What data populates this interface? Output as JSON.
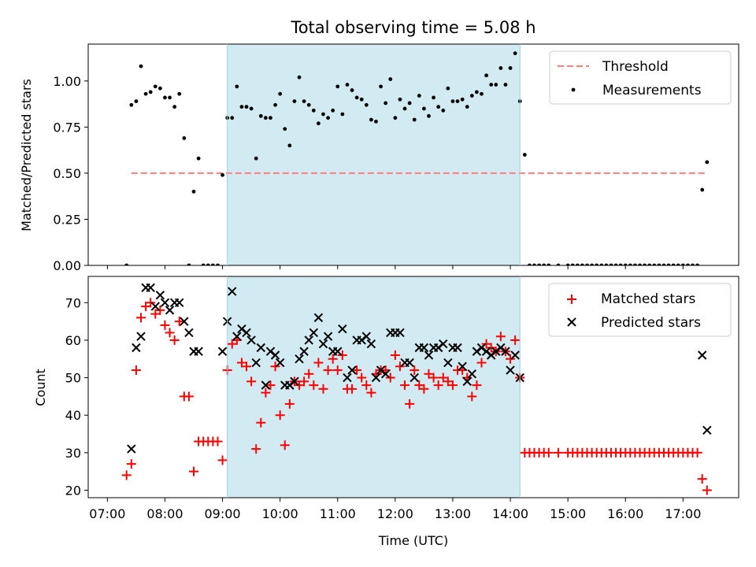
{
  "chart_data": [
    {
      "type": "scatter",
      "title": "Total observing time = 5.08 h",
      "ylabel": "Matched/Predicted stars",
      "xlim": [
        "07:00",
        "18:00"
      ],
      "ylim": [
        0,
        1.2
      ],
      "yticks": [
        "0.00",
        "0.25",
        "0.50",
        "0.75",
        "1.00"
      ],
      "shaded_interval": [
        "09:05",
        "14:10"
      ],
      "legend_position": "upper right",
      "colors": {
        "threshold": "#ff7f7f",
        "measurements": "#000000",
        "shade": "#add8e6"
      },
      "series": [
        {
          "name": "Threshold",
          "style": "dashed-line",
          "x": [
            "07:25",
            "17:25"
          ],
          "y": [
            0.5,
            0.5
          ]
        },
        {
          "name": "Measurements",
          "style": "dots",
          "x": [
            "07:20",
            "07:25",
            "07:30",
            "07:35",
            "07:40",
            "07:45",
            "07:50",
            "07:55",
            "08:00",
            "08:05",
            "08:10",
            "08:15",
            "08:20",
            "08:25",
            "08:30",
            "08:35",
            "08:40",
            "08:45",
            "08:50",
            "08:55",
            "09:00",
            "09:05",
            "09:10",
            "09:15",
            "09:20",
            "09:25",
            "09:30",
            "09:35",
            "09:40",
            "09:45",
            "09:50",
            "09:55",
            "10:00",
            "10:05",
            "10:10",
            "10:15",
            "10:20",
            "10:25",
            "10:30",
            "10:35",
            "10:40",
            "10:45",
            "10:50",
            "10:55",
            "11:00",
            "11:05",
            "11:10",
            "11:15",
            "11:20",
            "11:25",
            "11:30",
            "11:35",
            "11:40",
            "11:45",
            "11:50",
            "11:55",
            "12:00",
            "12:05",
            "12:10",
            "12:15",
            "12:20",
            "12:25",
            "12:30",
            "12:35",
            "12:40",
            "12:45",
            "12:50",
            "12:55",
            "13:00",
            "13:05",
            "13:10",
            "13:15",
            "13:20",
            "13:25",
            "13:30",
            "13:35",
            "13:40",
            "13:45",
            "13:50",
            "13:55",
            "14:00",
            "14:05",
            "14:10",
            "14:15",
            "14:20",
            "14:25",
            "14:30",
            "14:35",
            "14:40",
            "14:50",
            "15:00",
            "15:05",
            "15:10",
            "15:15",
            "15:20",
            "15:25",
            "15:30",
            "15:35",
            "15:40",
            "15:45",
            "15:50",
            "15:55",
            "16:00",
            "16:05",
            "16:10",
            "16:15",
            "16:20",
            "16:25",
            "16:30",
            "16:35",
            "16:40",
            "16:45",
            "16:50",
            "16:55",
            "17:00",
            "17:05",
            "17:10",
            "17:15",
            "17:20",
            "17:25"
          ],
          "y": [
            0.0,
            0.87,
            0.89,
            1.08,
            0.93,
            0.94,
            0.97,
            0.96,
            0.91,
            0.91,
            0.86,
            0.93,
            0.69,
            0.0,
            0.4,
            0.58,
            0.0,
            0.0,
            0.0,
            0.0,
            0.49,
            0.8,
            0.8,
            0.97,
            0.86,
            0.86,
            0.85,
            0.58,
            0.81,
            0.8,
            0.8,
            0.87,
            0.93,
            0.74,
            0.65,
            0.89,
            1.02,
            0.89,
            0.87,
            0.84,
            0.77,
            0.82,
            0.8,
            0.84,
            0.97,
            0.82,
            0.98,
            0.95,
            0.91,
            0.9,
            0.87,
            0.79,
            0.78,
            0.97,
            0.88,
            1.01,
            0.8,
            0.9,
            0.85,
            0.88,
            0.79,
            0.92,
            0.85,
            0.81,
            0.91,
            0.86,
            0.84,
            0.96,
            0.89,
            0.89,
            0.9,
            0.86,
            0.92,
            0.94,
            0.93,
            1.03,
            0.98,
            0.98,
            1.07,
            0.98,
            1.07,
            1.15,
            0.89,
            0.6,
            0.0,
            0.0,
            0.0,
            0.0,
            0.0,
            0.0,
            0.0,
            0.0,
            0.0,
            0.0,
            0.0,
            0.0,
            0.0,
            0.0,
            0.0,
            0.0,
            0.0,
            0.0,
            0.0,
            0.0,
            0.0,
            0.0,
            0.0,
            0.0,
            0.0,
            0.0,
            0.0,
            0.0,
            0.0,
            0.0,
            0.0,
            0.0,
            0.0,
            0.0,
            0.41,
            0.56
          ]
        }
      ]
    },
    {
      "type": "scatter",
      "xlabel": "Time (UTC)",
      "ylabel": "Count",
      "xlim": [
        "07:00",
        "18:00"
      ],
      "ylim": [
        18,
        77
      ],
      "yticks": [
        "20",
        "30",
        "40",
        "50",
        "60",
        "70"
      ],
      "xticks": [
        "07:00",
        "08:00",
        "09:00",
        "10:00",
        "11:00",
        "12:00",
        "13:00",
        "14:00",
        "15:00",
        "16:00",
        "17:00"
      ],
      "shaded_interval": [
        "09:05",
        "14:10"
      ],
      "legend_position": "upper right",
      "colors": {
        "matched": "#ff0000",
        "predicted": "#000000",
        "shade": "#add8e6"
      },
      "series": [
        {
          "name": "Matched stars",
          "marker": "plus",
          "x": [
            "07:20",
            "07:25",
            "07:30",
            "07:35",
            "07:40",
            "07:45",
            "07:50",
            "07:55",
            "08:00",
            "08:05",
            "08:10",
            "08:15",
            "08:20",
            "08:25",
            "08:30",
            "08:35",
            "08:40",
            "08:45",
            "08:50",
            "08:55",
            "09:00",
            "09:05",
            "09:10",
            "09:15",
            "09:20",
            "09:25",
            "09:30",
            "09:35",
            "09:40",
            "09:45",
            "09:50",
            "09:55",
            "10:00",
            "10:05",
            "10:10",
            "10:15",
            "10:20",
            "10:25",
            "10:30",
            "10:35",
            "10:40",
            "10:45",
            "10:50",
            "10:55",
            "11:00",
            "11:05",
            "11:10",
            "11:15",
            "11:20",
            "11:25",
            "11:30",
            "11:35",
            "11:40",
            "11:45",
            "11:50",
            "11:55",
            "12:00",
            "12:05",
            "12:10",
            "12:15",
            "12:20",
            "12:25",
            "12:30",
            "12:35",
            "12:40",
            "12:45",
            "12:50",
            "12:55",
            "13:00",
            "13:05",
            "13:10",
            "13:15",
            "13:20",
            "13:25",
            "13:30",
            "13:35",
            "13:40",
            "13:45",
            "13:50",
            "13:55",
            "14:00",
            "14:05",
            "14:10",
            "14:15",
            "14:20",
            "14:25",
            "14:30",
            "14:35",
            "14:40",
            "14:50",
            "15:00",
            "15:05",
            "15:10",
            "15:15",
            "15:20",
            "15:25",
            "15:30",
            "15:35",
            "15:40",
            "15:45",
            "15:50",
            "15:55",
            "16:00",
            "16:05",
            "16:10",
            "16:15",
            "16:20",
            "16:25",
            "16:30",
            "16:35",
            "16:40",
            "16:45",
            "16:50",
            "16:55",
            "17:00",
            "17:05",
            "17:10",
            "17:15",
            "17:20",
            "17:25"
          ],
          "y": [
            24,
            27,
            52,
            66,
            69,
            70,
            67,
            68,
            64,
            62,
            60,
            65,
            45,
            45,
            25,
            33,
            33,
            33,
            33,
            33,
            28,
            52,
            59,
            60,
            54,
            53,
            49,
            31,
            38,
            46,
            48,
            53,
            40,
            32,
            43,
            49,
            48,
            49,
            51,
            48,
            54,
            47,
            52,
            55,
            52,
            56,
            47,
            47,
            52,
            50,
            48,
            46,
            51,
            52,
            52,
            50,
            56,
            53,
            48,
            43,
            52,
            48,
            47,
            51,
            50,
            48,
            50,
            49,
            48,
            52,
            52,
            50,
            45,
            48,
            54,
            59,
            58,
            57,
            61,
            57,
            55,
            60,
            50,
            30,
            30,
            30,
            30,
            30,
            30,
            30,
            30,
            30,
            30,
            30,
            30,
            30,
            30,
            30,
            30,
            30,
            30,
            30,
            30,
            30,
            30,
            30,
            30,
            30,
            30,
            30,
            30,
            30,
            30,
            30,
            30,
            30,
            30,
            30,
            23,
            20
          ]
        },
        {
          "name": "Predicted stars",
          "marker": "x",
          "x": [
            "07:25",
            "07:30",
            "07:35",
            "07:40",
            "07:45",
            "07:50",
            "07:55",
            "08:00",
            "08:05",
            "08:10",
            "08:15",
            "08:20",
            "08:25",
            "08:30",
            "08:35",
            "09:00",
            "09:05",
            "09:10",
            "09:15",
            "09:20",
            "09:25",
            "09:30",
            "09:35",
            "09:40",
            "09:45",
            "09:50",
            "09:55",
            "10:00",
            "10:05",
            "10:10",
            "10:15",
            "10:20",
            "10:25",
            "10:30",
            "10:35",
            "10:40",
            "10:45",
            "10:50",
            "10:55",
            "11:00",
            "11:05",
            "11:10",
            "11:15",
            "11:20",
            "11:25",
            "11:30",
            "11:35",
            "11:40",
            "11:45",
            "11:50",
            "11:55",
            "12:00",
            "12:05",
            "12:10",
            "12:15",
            "12:20",
            "12:25",
            "12:30",
            "12:35",
            "12:40",
            "12:45",
            "12:50",
            "12:55",
            "13:00",
            "13:05",
            "13:10",
            "13:15",
            "13:20",
            "13:25",
            "13:30",
            "13:35",
            "13:40",
            "13:45",
            "13:50",
            "13:55",
            "14:00",
            "14:05",
            "14:10",
            "17:20",
            "17:25"
          ],
          "y": [
            31,
            58,
            61,
            74,
            74,
            69,
            72,
            70,
            68,
            70,
            70,
            65,
            62,
            57,
            57,
            57,
            65,
            73,
            61,
            63,
            62,
            60,
            54,
            58,
            48,
            57,
            56,
            54,
            48,
            48,
            49,
            55,
            57,
            60,
            62,
            66,
            59,
            61,
            57,
            57,
            63,
            50,
            52,
            60,
            60,
            61,
            59,
            50,
            52,
            51,
            62,
            62,
            62,
            54,
            54,
            50,
            58,
            58,
            56,
            58,
            58,
            59,
            54,
            58,
            58,
            53,
            49,
            51,
            57,
            58,
            57,
            56,
            57,
            58,
            57,
            52,
            56,
            50,
            56,
            36
          ]
        }
      ]
    }
  ]
}
